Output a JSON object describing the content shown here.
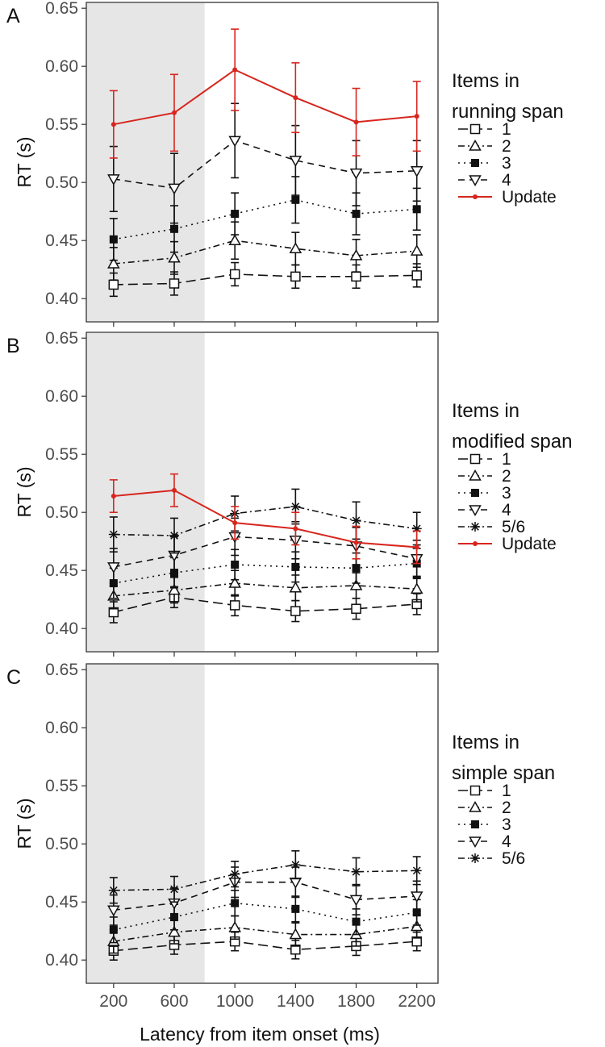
{
  "figure": {
    "xlabel": "Latency from item onset (ms)",
    "colors": {
      "update": "#d7261e",
      "series": "#111111",
      "shade": "#e6e6e6",
      "frame": "#333333"
    }
  },
  "chart_data": [
    {
      "type": "line",
      "panel_label": "A",
      "ylabel": "RT (s)",
      "legend_title": [
        "Items in",
        "running span"
      ],
      "legend_position": "right",
      "x": [
        200,
        600,
        1000,
        1400,
        1800,
        2200
      ],
      "x_ticks": [
        "200",
        "600",
        "1000",
        "1400",
        "1800",
        "2200"
      ],
      "xlim": [
        20,
        2340
      ],
      "ylim": [
        0.38,
        0.655
      ],
      "y_ticks": [
        "0.40",
        "0.45",
        "0.50",
        "0.55",
        "0.60",
        "0.65"
      ],
      "shaded_region": [
        20,
        800
      ],
      "grid": false,
      "series": [
        {
          "name": "1",
          "marker": "square-open",
          "dash": "long",
          "values": [
            0.412,
            0.413,
            0.421,
            0.419,
            0.419,
            0.42
          ],
          "errors": [
            0.01,
            0.01,
            0.01,
            0.01,
            0.01,
            0.01
          ]
        },
        {
          "name": "2",
          "marker": "triangle-up-open",
          "dash": "dashdot",
          "values": [
            0.43,
            0.435,
            0.45,
            0.443,
            0.437,
            0.441
          ],
          "errors": [
            0.014,
            0.014,
            0.016,
            0.014,
            0.014,
            0.014
          ]
        },
        {
          "name": "3",
          "marker": "square-filled",
          "dash": "dotted",
          "values": [
            0.451,
            0.46,
            0.473,
            0.485,
            0.473,
            0.477
          ],
          "errors": [
            0.018,
            0.02,
            0.018,
            0.02,
            0.018,
            0.018
          ]
        },
        {
          "name": "4",
          "marker": "triangle-down-open",
          "dash": "dashed",
          "values": [
            0.503,
            0.495,
            0.536,
            0.519,
            0.508,
            0.51
          ],
          "errors": [
            0.028,
            0.03,
            0.032,
            0.03,
            0.028,
            0.026
          ]
        },
        {
          "name": "Update",
          "marker": "dot",
          "dash": "solid",
          "color": "#d7261e",
          "values": [
            0.55,
            0.56,
            0.597,
            0.573,
            0.552,
            0.557
          ],
          "errors": [
            0.029,
            0.033,
            0.035,
            0.03,
            0.029,
            0.03
          ]
        }
      ]
    },
    {
      "type": "line",
      "panel_label": "B",
      "ylabel": "RT (s)",
      "legend_title": [
        "Items in",
        "modified span"
      ],
      "legend_position": "right",
      "x": [
        200,
        600,
        1000,
        1400,
        1800,
        2200
      ],
      "x_ticks": [
        "200",
        "600",
        "1000",
        "1400",
        "1800",
        "2200"
      ],
      "xlim": [
        20,
        2340
      ],
      "ylim": [
        0.38,
        0.655
      ],
      "y_ticks": [
        "0.40",
        "0.45",
        "0.50",
        "0.55",
        "0.60",
        "0.65"
      ],
      "shaded_region": [
        20,
        800
      ],
      "grid": false,
      "series": [
        {
          "name": "1",
          "marker": "square-open",
          "dash": "long",
          "values": [
            0.414,
            0.427,
            0.42,
            0.415,
            0.417,
            0.421
          ],
          "errors": [
            0.009,
            0.009,
            0.009,
            0.009,
            0.009,
            0.009
          ]
        },
        {
          "name": "2",
          "marker": "triangle-up-open",
          "dash": "dashdot",
          "values": [
            0.428,
            0.433,
            0.439,
            0.435,
            0.437,
            0.434
          ],
          "errors": [
            0.011,
            0.011,
            0.011,
            0.011,
            0.011,
            0.011
          ]
        },
        {
          "name": "3",
          "marker": "square-filled",
          "dash": "dotted",
          "values": [
            0.439,
            0.448,
            0.455,
            0.453,
            0.452,
            0.456
          ],
          "errors": [
            0.013,
            0.013,
            0.013,
            0.013,
            0.013,
            0.013
          ]
        },
        {
          "name": "4",
          "marker": "triangle-down-open",
          "dash": "dashed",
          "values": [
            0.453,
            0.463,
            0.479,
            0.476,
            0.471,
            0.46
          ],
          "errors": [
            0.016,
            0.016,
            0.016,
            0.016,
            0.016,
            0.016
          ]
        },
        {
          "name": "5/6",
          "marker": "asterisk",
          "dash": "dashdot",
          "values": [
            0.481,
            0.48,
            0.499,
            0.505,
            0.493,
            0.486
          ],
          "errors": [
            0.015,
            0.015,
            0.015,
            0.015,
            0.016,
            0.014
          ]
        },
        {
          "name": "Update",
          "marker": "dot",
          "dash": "solid",
          "color": "#d7261e",
          "values": [
            0.514,
            0.519,
            0.491,
            0.486,
            0.474,
            0.47
          ],
          "errors": [
            0.014,
            0.014,
            0.014,
            0.014,
            0.014,
            0.014
          ]
        }
      ]
    },
    {
      "type": "line",
      "panel_label": "C",
      "ylabel": "RT (s)",
      "legend_title": [
        "Items in",
        "simple span"
      ],
      "legend_position": "right",
      "x": [
        200,
        600,
        1000,
        1400,
        1800,
        2200
      ],
      "x_ticks": [
        "200",
        "600",
        "1000",
        "1400",
        "1800",
        "2200"
      ],
      "xlim": [
        20,
        2340
      ],
      "ylim": [
        0.38,
        0.655
      ],
      "y_ticks": [
        "0.40",
        "0.45",
        "0.50",
        "0.55",
        "0.60",
        "0.65"
      ],
      "shaded_region": [
        20,
        800
      ],
      "grid": false,
      "series": [
        {
          "name": "1",
          "marker": "square-open",
          "dash": "long",
          "values": [
            0.408,
            0.413,
            0.416,
            0.409,
            0.412,
            0.416
          ],
          "errors": [
            0.008,
            0.008,
            0.008,
            0.008,
            0.008,
            0.008
          ]
        },
        {
          "name": "2",
          "marker": "triangle-up-open",
          "dash": "dashdot",
          "values": [
            0.416,
            0.424,
            0.428,
            0.422,
            0.422,
            0.429
          ],
          "errors": [
            0.01,
            0.01,
            0.01,
            0.01,
            0.01,
            0.01
          ]
        },
        {
          "name": "3",
          "marker": "square-filled",
          "dash": "dotted",
          "values": [
            0.426,
            0.437,
            0.449,
            0.444,
            0.433,
            0.441
          ],
          "errors": [
            0.011,
            0.011,
            0.011,
            0.011,
            0.011,
            0.011
          ]
        },
        {
          "name": "4",
          "marker": "triangle-down-open",
          "dash": "dashed",
          "values": [
            0.443,
            0.449,
            0.467,
            0.467,
            0.452,
            0.455
          ],
          "errors": [
            0.013,
            0.013,
            0.013,
            0.013,
            0.013,
            0.013
          ]
        },
        {
          "name": "5/6",
          "marker": "asterisk",
          "dash": "dashdot",
          "values": [
            0.46,
            0.461,
            0.474,
            0.482,
            0.476,
            0.477
          ],
          "errors": [
            0.011,
            0.011,
            0.011,
            0.012,
            0.012,
            0.012
          ]
        }
      ]
    }
  ]
}
